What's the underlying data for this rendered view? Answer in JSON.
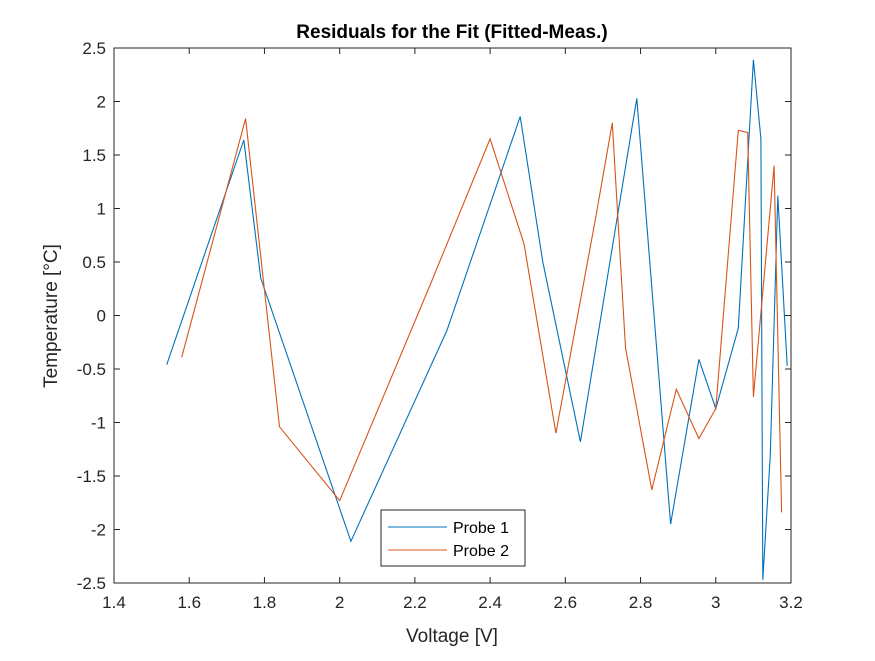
{
  "chart_data": {
    "type": "line",
    "title": "Residuals for the Fit (Fitted-Meas.)",
    "xlabel": "Voltage [V]",
    "ylabel": "Temperature [°C]",
    "xlim": [
      1.4,
      3.2
    ],
    "ylim": [
      -2.5,
      2.5
    ],
    "xticks": [
      "1.4",
      "1.6",
      "1.8",
      "2",
      "2.2",
      "2.4",
      "2.6",
      "2.8",
      "3",
      "3.2"
    ],
    "yticks": [
      "2.5",
      "2",
      "1.5",
      "1",
      "0.5",
      "0",
      "-0.5",
      "-1",
      "-1.5",
      "-2",
      "-2.5"
    ],
    "grid": false,
    "legend_position": "bottom-center",
    "series": [
      {
        "name": "Probe 1",
        "color": "#0072BD",
        "x": [
          1.54,
          1.745,
          1.79,
          2.03,
          2.285,
          2.48,
          2.54,
          2.64,
          2.79,
          2.88,
          2.955,
          3.0,
          3.06,
          3.1,
          3.12,
          3.125,
          3.145,
          3.165,
          3.19
        ],
        "y": [
          -0.46,
          1.64,
          0.35,
          -2.11,
          -0.14,
          1.86,
          0.5,
          -1.18,
          2.03,
          -1.95,
          -0.41,
          -0.87,
          -0.12,
          2.39,
          1.65,
          -2.47,
          -1.3,
          1.12,
          -0.47
        ]
      },
      {
        "name": "Probe 2",
        "color": "#D95319",
        "x": [
          1.58,
          1.75,
          1.84,
          2.0,
          2.24,
          2.4,
          2.49,
          2.575,
          2.68,
          2.725,
          2.76,
          2.83,
          2.895,
          2.955,
          3.0,
          3.06,
          3.085,
          3.1,
          3.155,
          3.175
        ],
        "y": [
          -0.39,
          1.84,
          -1.04,
          -1.73,
          0.28,
          1.65,
          0.67,
          -1.1,
          0.9,
          1.8,
          -0.3,
          -1.63,
          -0.69,
          -1.15,
          -0.87,
          1.73,
          1.71,
          -0.76,
          1.4,
          -1.84
        ]
      }
    ]
  }
}
